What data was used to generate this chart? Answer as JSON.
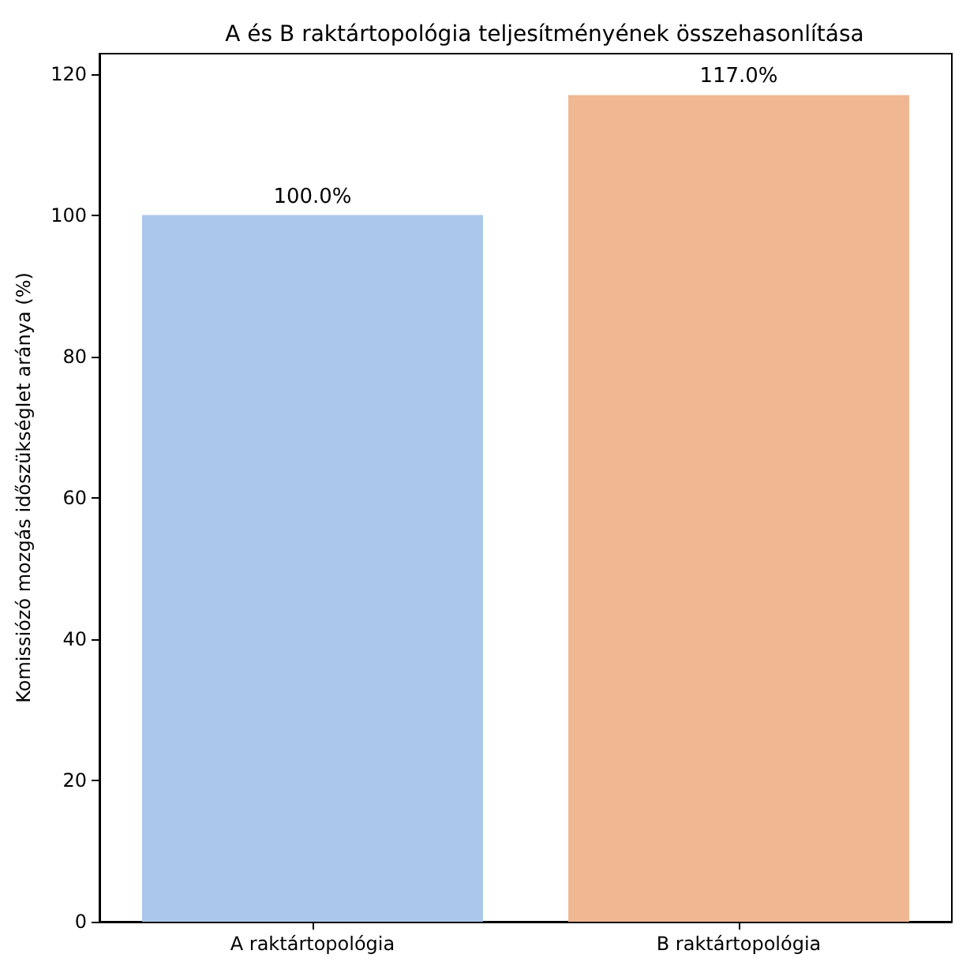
{
  "chart_data": {
    "type": "bar",
    "title": "A és B raktártopológia teljesítményének összehasonlítása",
    "ylabel": "Komissiózó mozgás időszükséglet aránya (%)",
    "categories": [
      "A raktártopológia",
      "B raktártopológia"
    ],
    "values": [
      100,
      117
    ],
    "colors": [
      "#abc8eb",
      "#f0b793"
    ],
    "value_labels": [
      "100.0%",
      "117.0%"
    ],
    "ylim": [
      0,
      122.85
    ],
    "yticks": [
      0,
      20,
      40,
      60,
      80,
      100,
      120
    ],
    "grid": false
  }
}
